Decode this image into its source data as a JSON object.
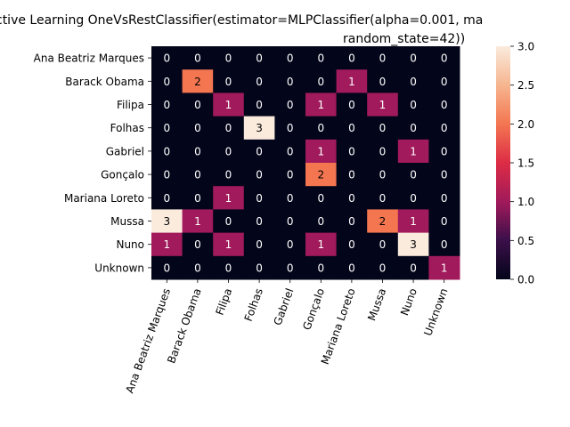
{
  "chart_data": {
    "type": "heatmap",
    "title_line1": "ctive Learning OneVsRestClassifier(estimator=MLPClassifier(alpha=0.001, ma",
    "title_line2": "random_state=42))",
    "row_labels": [
      "Ana Beatriz Marques",
      "Barack Obama",
      "Filipa",
      "Folhas",
      "Gabriel",
      "Gonçalo",
      "Mariana Loreto",
      "Mussa",
      "Nuno",
      "Unknown"
    ],
    "col_labels": [
      "Ana Beatriz Marques",
      "Barack Obama",
      "Filipa",
      "Folhas",
      "Gabriel",
      "Gonçalo",
      "Mariana Loreto",
      "Mussa",
      "Nuno",
      "Unknown"
    ],
    "values": [
      [
        0,
        0,
        0,
        0,
        0,
        0,
        0,
        0,
        0,
        0
      ],
      [
        0,
        2,
        0,
        0,
        0,
        0,
        1,
        0,
        0,
        0
      ],
      [
        0,
        0,
        1,
        0,
        0,
        1,
        0,
        1,
        0,
        0
      ],
      [
        0,
        0,
        0,
        3,
        0,
        0,
        0,
        0,
        0,
        0
      ],
      [
        0,
        0,
        0,
        0,
        0,
        1,
        0,
        0,
        1,
        0
      ],
      [
        0,
        0,
        0,
        0,
        0,
        2,
        0,
        0,
        0,
        0
      ],
      [
        0,
        0,
        1,
        0,
        0,
        0,
        0,
        0,
        0,
        0
      ],
      [
        3,
        1,
        0,
        0,
        0,
        0,
        0,
        2,
        1,
        0
      ],
      [
        1,
        0,
        1,
        0,
        0,
        1,
        0,
        0,
        3,
        0
      ],
      [
        0,
        0,
        0,
        0,
        0,
        0,
        0,
        0,
        0,
        1
      ]
    ],
    "vmin": 0,
    "vmax": 3,
    "colorbar_ticks": [
      "0.0",
      "0.5",
      "1.0",
      "1.5",
      "2.0",
      "2.5",
      "3.0"
    ],
    "colormap": "rocket",
    "colors": {
      "v0": "#03051a",
      "v1": "#a11a5b",
      "v2": "#f37651",
      "v3": "#faebdd"
    }
  }
}
